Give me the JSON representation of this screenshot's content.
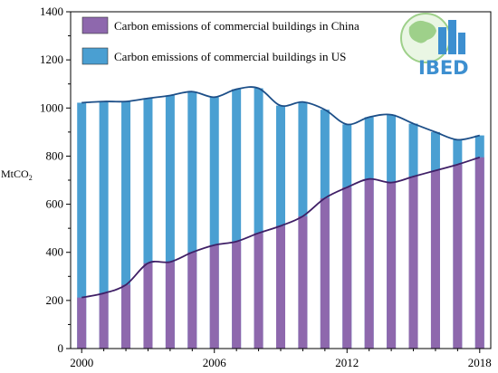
{
  "chart_data": {
    "type": "bar",
    "x": [
      2000,
      2001,
      2002,
      2003,
      2004,
      2005,
      2006,
      2007,
      2008,
      2009,
      2010,
      2011,
      2012,
      2013,
      2014,
      2015,
      2016,
      2017,
      2018
    ],
    "xticks": [
      "2000",
      "2006",
      "2012",
      "2018"
    ],
    "yticks": [
      "0",
      "200",
      "400",
      "600",
      "800",
      "1000",
      "1200",
      "1400"
    ],
    "ylabel": "MtCO",
    "ylabel_sub": "2",
    "ylim": [
      0,
      1400
    ],
    "xlim": [
      1999.5,
      2018.5
    ],
    "grid": false,
    "legend_position": "top-left",
    "series": [
      {
        "name": "Carbon emissions of commercial buildings in China",
        "color": "#8e68ad",
        "line_color": "#3f1f66",
        "values": [
          212,
          230,
          265,
          355,
          360,
          400,
          430,
          445,
          480,
          510,
          550,
          625,
          670,
          705,
          690,
          715,
          740,
          765,
          795
        ]
      },
      {
        "name": "Carbon emissions of commercial buildings in US",
        "color": "#4a9fd2",
        "line_color": "#1d4f88",
        "values": [
          1022,
          1027,
          1027,
          1040,
          1052,
          1068,
          1045,
          1078,
          1082,
          1010,
          1025,
          993,
          932,
          962,
          972,
          935,
          900,
          868,
          886
        ]
      }
    ]
  },
  "logo": {
    "text": "IBED",
    "colors": {
      "map": "#9ed08a",
      "building": "#3d8fd0"
    }
  }
}
